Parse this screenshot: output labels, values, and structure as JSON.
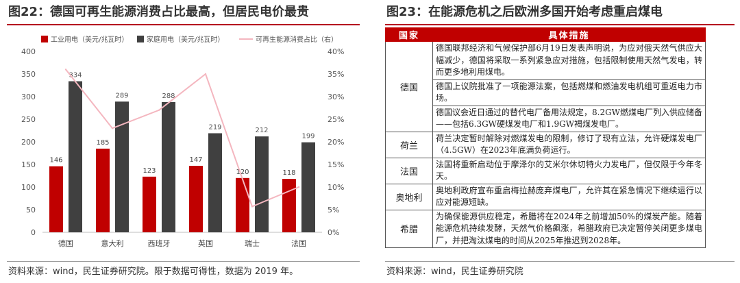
{
  "left": {
    "title": "图22：德国可再生能源消费占比最高，但居民电价最贵",
    "source": "资料来源：wind，民生证券研究院。限于数据可得性，数据为 2019 年。"
  },
  "right": {
    "title": "图23：在能源危机之后欧洲多国开始考虑重启煤电",
    "source": "资料来源：wind，民生证券研究院",
    "table": {
      "headers": [
        "国家",
        "具体措施"
      ],
      "rows": [
        {
          "country": "德国",
          "measures": [
            "德国联邦经济和气候保护部6月19日发表声明说，为应对俄天然气供应大幅减少，德国将采取一系列紧急应对措施，包括限制使用天然气发电，转而更多地利用煤电。",
            "德国上议院批准了一项能源法案，包括燃煤和燃油发电机组可重返电力市场。",
            "德国议会近日通过的替代电厂备用法规定，8.2GW燃煤电厂列入供应储备——包括6.3GW硬煤发电厂和1.9GW褐煤发电厂。"
          ]
        },
        {
          "country": "荷兰",
          "measures": [
            "荷兰决定暂时解除对燃煤发电的限制，修订了现有立法，允许硬煤发电厂（4.5GW）在2023年底满负荷运行。"
          ]
        },
        {
          "country": "法国",
          "measures": [
            "法国将重新启动位于摩泽尔的艾米尔休切特火力发电厂，但仅限于今年冬天。"
          ]
        },
        {
          "country": "奥地利",
          "measures": [
            "奥地利政府宣布重启梅拉赫庞弃煤电厂，允许其在紧急情况下继续运行以应对能源短缺。"
          ]
        },
        {
          "country": "希腊",
          "measures": [
            "为确保能源供应稳定，希腊将在2024年之前增加50%的煤炭产能。随着能源危机持续发酵，天然气价格飙涨，希腊政府已决定暂停关闭更多煤电厂，并把淘汰煤电的时间从2025年推迟到2028年。"
          ]
        }
      ]
    }
  },
  "chart_data": {
    "type": "bar",
    "title": "",
    "categories": [
      "德国",
      "意大利",
      "西班牙",
      "英国",
      "瑞士",
      "法国"
    ],
    "series": [
      {
        "name": "工业用电（美元/兆瓦时）",
        "type": "bar",
        "axis": "left",
        "color": "#c00000",
        "values": [
          146,
          185,
          123,
          147,
          120,
          118
        ]
      },
      {
        "name": "家庭用电（美元/兆瓦时）",
        "type": "bar",
        "axis": "left",
        "color": "#404040",
        "values": [
          334,
          289,
          288,
          219,
          212,
          199
        ]
      },
      {
        "name": "可再生能源消费占比（右）",
        "type": "line",
        "axis": "right",
        "color": "#f4b6bf",
        "values": [
          0.36,
          0.23,
          0.27,
          0.35,
          0.057,
          0.1
        ]
      }
    ],
    "y_left": {
      "min": 0,
      "max": 400,
      "step": 50,
      "ticks": [
        "0",
        "50",
        "100",
        "150",
        "200",
        "250",
        "300",
        "350",
        "400"
      ]
    },
    "y_right": {
      "min": 0,
      "max": 0.4,
      "step": 0.05,
      "ticks": [
        "0%",
        "5%",
        "10%",
        "15%",
        "20%",
        "25%",
        "30%",
        "35%",
        "40%"
      ]
    },
    "legend_position": "top",
    "grid": false
  }
}
